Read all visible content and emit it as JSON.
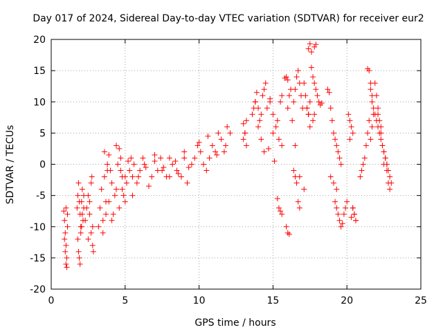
{
  "chart_data": {
    "type": "scatter",
    "title": "Day 017 of 2024, Sidereal Day-to-day VTEC variation (SDTVAR) for receiver eur2",
    "xlabel": "GPS time / hours",
    "ylabel": "SDTVAR / TECUs",
    "xlim": [
      0,
      25
    ],
    "ylim": [
      -20,
      20
    ],
    "xticks": [
      0,
      5,
      10,
      15,
      20,
      25
    ],
    "yticks": [
      -20,
      -15,
      -10,
      -5,
      0,
      5,
      10,
      15,
      20
    ],
    "grid": true,
    "marker": "+",
    "color": "#ff0000",
    "series": [
      {
        "name": "SDTVAR",
        "x": [
          0.85,
          0.9,
          0.95,
          1.0,
          1.0,
          1.05,
          1.05,
          1.1,
          1.1,
          0.9,
          0.95,
          1.0,
          1.75,
          1.8,
          1.85,
          1.9,
          1.95,
          2.0,
          2.05,
          2.1,
          2.15,
          2.2,
          1.8,
          1.9,
          2.0,
          2.1,
          2.2,
          1.85,
          1.95,
          2.05,
          2.3,
          2.4,
          2.5,
          2.6,
          2.7,
          2.8,
          2.85,
          2.6,
          2.7,
          2.75,
          2.8,
          2.5,
          3.2,
          3.3,
          3.4,
          3.5,
          3.6,
          3.7,
          3.8,
          3.9,
          4.0,
          4.1,
          4.2,
          4.3,
          3.5,
          3.7,
          3.9,
          4.1,
          3.6,
          3.8,
          4.4,
          4.5,
          4.6,
          4.7,
          4.8,
          4.9,
          5.0,
          5.1,
          5.2,
          4.6,
          4.8,
          5.0,
          4.4,
          4.7,
          5.3,
          5.4,
          5.5,
          5.6,
          5.8,
          6.0,
          6.2,
          6.4,
          6.6,
          6.8,
          7.0,
          5.5,
          5.9,
          6.3,
          7.0,
          7.2,
          7.4,
          7.6,
          7.8,
          8.0,
          8.2,
          8.4,
          8.6,
          8.8,
          9.0,
          9.2,
          7.5,
          8.0,
          8.5,
          9.0,
          9.3,
          9.5,
          9.7,
          9.9,
          10.1,
          10.3,
          10.5,
          10.7,
          10.9,
          11.1,
          11.3,
          11.5,
          11.7,
          11.9,
          12.1,
          10.0,
          10.6,
          11.2,
          11.8,
          13.0,
          13.1,
          13.2,
          13.2,
          13.6,
          13.7,
          13.8,
          13.9,
          14.0,
          14.1,
          14.2,
          14.3,
          14.4,
          14.5,
          13.8,
          14.0,
          14.2,
          14.4,
          14.6,
          14.8,
          15.0,
          15.2,
          15.4,
          15.6,
          14.7,
          15.0,
          15.3,
          14.8,
          15.1,
          15.5,
          15.6,
          15.8,
          16.0,
          16.1,
          16.2,
          15.9,
          16.0,
          16.3,
          16.4,
          16.5,
          16.6,
          16.7,
          16.8,
          16.9,
          17.0,
          17.1,
          17.2,
          17.3,
          17.4,
          17.5,
          17.6,
          16.5,
          16.8,
          17.1,
          16.4,
          16.5,
          16.6,
          16.7,
          16.8,
          17.4,
          17.5,
          17.6,
          17.7,
          17.8,
          17.9,
          18.0,
          18.1,
          18.2,
          18.3,
          17.8,
          17.9,
          18.7,
          18.8,
          18.9,
          19.0,
          19.1,
          19.2,
          19.3,
          19.4,
          19.5,
          19.6,
          18.9,
          19.1,
          19.3,
          19.2,
          19.3,
          19.4,
          19.5,
          19.6,
          19.7,
          19.8,
          19.9,
          20.0,
          20.1,
          20.2,
          20.3,
          20.4,
          20.5,
          20.6,
          20.2,
          20.4,
          20.3,
          20.4,
          20.5,
          20.6,
          20.9,
          21.0,
          21.1,
          21.2,
          21.3,
          21.4,
          21.5,
          21.6,
          21.7,
          21.8,
          21.4,
          21.5,
          21.6,
          21.7,
          21.9,
          22.0,
          22.1,
          22.2,
          22.3,
          22.4,
          22.5,
          22.6,
          22.7,
          22.8,
          22.9,
          23.0,
          22.1,
          22.3,
          22.5,
          22.7,
          22.9,
          21.6,
          21.7,
          21.8,
          21.9,
          22.0,
          22.1,
          22.2,
          22.3,
          22.4,
          22.5,
          22.6,
          22.7,
          22.8,
          15.3,
          15.4,
          15.5,
          15.6,
          15.9,
          16.0,
          16.1,
          13.0,
          13.1,
          17.3,
          17.4,
          17.5,
          17.7,
          17.8
        ],
        "y": [
          -7.5,
          -9,
          -11,
          -13,
          -16,
          -15,
          -16.5,
          -8,
          -10,
          -12,
          -14,
          -7,
          -7,
          -5,
          -3,
          -6,
          -8,
          -10,
          -6,
          -4,
          -9,
          -7,
          -12,
          -15,
          -11,
          -8,
          -5,
          -14,
          -16,
          -10,
          -9,
          -7,
          -5,
          -8,
          -11,
          -13,
          -14,
          -6,
          -3,
          -2,
          -10,
          -12,
          -10,
          -7,
          -4,
          -9,
          -2,
          -6,
          0,
          1.5,
          -1,
          -3,
          -8,
          -5,
          -11,
          -8,
          -6,
          -9,
          2,
          -1,
          -4,
          0,
          2.5,
          1,
          -2,
          -5,
          -6,
          -3,
          0.5,
          -7,
          -4,
          -2,
          3,
          -1,
          -1,
          1,
          -2,
          0,
          -3,
          -1,
          1,
          -0.5,
          -3.5,
          -2,
          1.5,
          -5,
          -2,
          0,
          0.5,
          -1,
          1,
          -0.5,
          -2,
          1,
          0,
          0.5,
          -1.5,
          -2,
          1,
          -3,
          -1,
          -2,
          -1,
          2,
          -0.5,
          0,
          1,
          3,
          2,
          0,
          -1,
          1,
          3,
          2,
          5,
          4,
          2,
          6,
          5,
          3.5,
          4.5,
          1.5,
          3,
          6.5,
          5,
          7,
          3,
          8,
          9,
          10,
          11.5,
          9,
          7,
          8,
          11,
          12,
          13,
          10,
          6,
          4,
          2,
          9,
          10.5,
          8,
          6,
          4,
          3,
          2.5,
          5,
          7,
          10,
          0.5,
          10,
          11,
          13.8,
          9,
          11,
          12,
          14,
          13.5,
          7,
          10,
          12,
          14,
          15,
          13,
          11,
          9,
          13,
          11,
          9,
          8,
          10,
          15.5,
          3,
          -2,
          -4,
          -1,
          -2,
          -3,
          -6,
          -7,
          18.5,
          19.3,
          18,
          14,
          13,
          12,
          11,
          10,
          9.5,
          9.8,
          18.8,
          19.2,
          12,
          11.5,
          9,
          7,
          5,
          4,
          3,
          2,
          1,
          0,
          -2,
          -3,
          -4,
          -6,
          -7,
          -8,
          -9,
          -10,
          -9.5,
          -8,
          -7,
          -6,
          8,
          7,
          6,
          5,
          -8,
          -9,
          4,
          -7,
          -8.5,
          -7,
          -8,
          -9,
          -2,
          -1,
          0,
          1,
          3,
          5,
          7,
          4,
          6,
          8,
          15.3,
          15,
          13,
          11,
          13,
          11,
          9,
          7,
          5,
          3,
          2,
          1,
          0,
          -1,
          -2,
          -3,
          8,
          6,
          0,
          -1,
          -4,
          12,
          10,
          9,
          8,
          7,
          6,
          5,
          4,
          3,
          2,
          1,
          0,
          -3,
          -5.5,
          -7,
          -7.5,
          -8,
          -10,
          -11,
          -11.2,
          4,
          5,
          9,
          8,
          6,
          7,
          8
        ],
        "color": "#ff0000"
      }
    ]
  }
}
